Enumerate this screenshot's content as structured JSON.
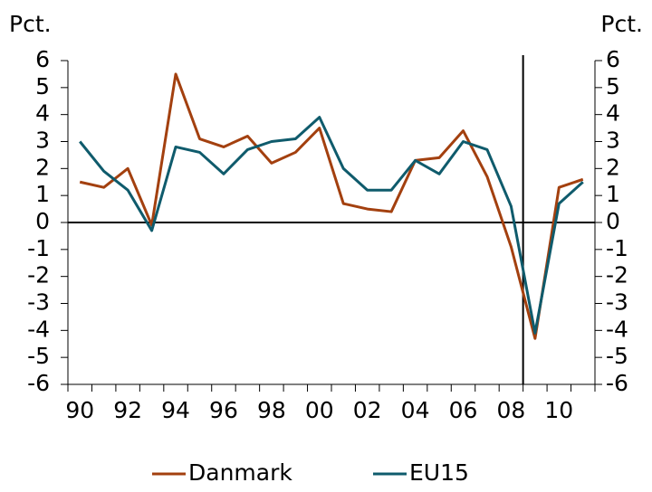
{
  "chart_data": {
    "type": "line",
    "y_label_left": "Pct.",
    "y_label_right": "Pct.",
    "categories": [
      "90",
      null,
      "92",
      null,
      "94",
      null,
      "96",
      null,
      "98",
      null,
      "00",
      null,
      "02",
      null,
      "04",
      null,
      "06",
      null,
      "08",
      null,
      "10",
      null
    ],
    "series": [
      {
        "name": "Danmark",
        "color": "#a3400f",
        "values": [
          1.5,
          1.3,
          2.0,
          -0.1,
          5.5,
          3.1,
          2.8,
          3.2,
          2.2,
          2.6,
          3.5,
          0.7,
          0.5,
          0.4,
          2.3,
          2.4,
          3.4,
          1.7,
          -0.9,
          -4.3,
          1.3,
          1.6
        ]
      },
      {
        "name": "EU15",
        "color": "#0f5b6c",
        "values": [
          3.0,
          1.9,
          1.2,
          -0.3,
          2.8,
          2.6,
          1.8,
          2.7,
          3.0,
          3.1,
          3.9,
          2.0,
          1.2,
          1.2,
          2.3,
          1.8,
          3.0,
          2.7,
          0.6,
          -4.1,
          0.7,
          1.5
        ]
      }
    ],
    "ylim": [
      -6,
      6
    ],
    "yticks": [
      -6,
      -5,
      -4,
      -3,
      -2,
      -1,
      0,
      1,
      2,
      3,
      4,
      5,
      6
    ],
    "y2lim": [
      -6,
      6
    ],
    "y2ticks": [
      -6,
      -5,
      -4,
      -3,
      -2,
      -1,
      0,
      1,
      2,
      3,
      4,
      5,
      6
    ],
    "grid": false
  }
}
